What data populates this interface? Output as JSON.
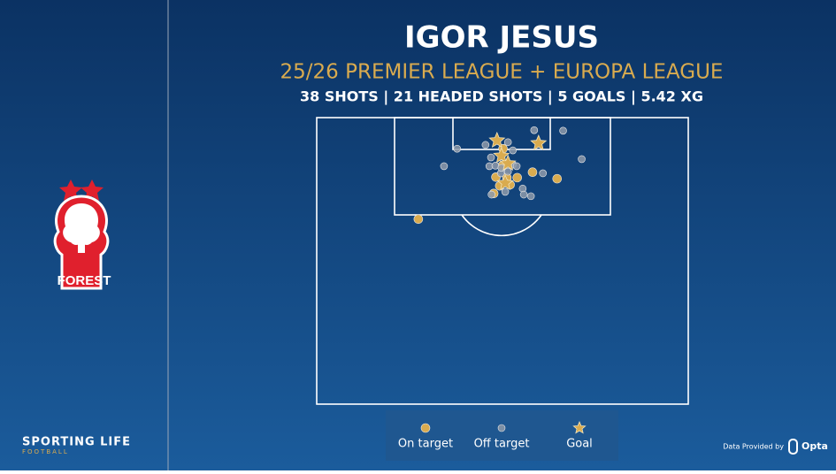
{
  "chart_data": {
    "type": "scatter",
    "title": "IGOR JESUS",
    "subtitle": "25/26 PREMIER LEAGUE + EUROPA LEAGUE",
    "stats": "38 SHOTS | 21 HEADED SHOTS | 5 GOALS | 5.42 XG",
    "xlim": [
      0,
      68
    ],
    "ylim": [
      0,
      52.5
    ],
    "y_inverted": true,
    "series": [
      {
        "name": "On target",
        "color": "#d9ab4f",
        "marker": "circle",
        "x": [
          34.0,
          32.8,
          36.7,
          39.5,
          44.0,
          33.5,
          35.4,
          32.4,
          18.6,
          34.1,
          34.8
        ],
        "values": [
          8.8,
          10.9,
          11.0,
          10.0,
          11.2,
          12.5,
          12.3,
          13.9,
          18.6,
          5.7,
          11.0
        ]
      },
      {
        "name": "Off target",
        "color": "#8e9aaa",
        "marker": "circle",
        "x": [
          39.8,
          45.1,
          35.0,
          25.7,
          48.5,
          23.3,
          31.6,
          32.7,
          41.4,
          37.7,
          39.2,
          32.0,
          34.5,
          37.9,
          35.9,
          31.9,
          33.7,
          35.9,
          30.9,
          36.6,
          33.8,
          35.0
        ],
        "values": [
          2.3,
          2.4,
          4.5,
          5.7,
          7.6,
          8.9,
          8.9,
          8.8,
          10.2,
          13.0,
          14.4,
          14.1,
          13.6,
          14.1,
          8.6,
          7.3,
          10.2,
          6.0,
          5.0,
          8.9,
          9.2,
          9.9
        ]
      },
      {
        "name": "Goal",
        "color": "#d9ab4f",
        "marker": "star",
        "x": [
          33.0,
          40.6,
          33.8,
          35.0,
          34.5
        ],
        "values": [
          4.2,
          4.7,
          7.0,
          8.4,
          12.0
        ]
      }
    ]
  },
  "branding": {
    "crest_text": "FOREST",
    "brand": "SPORTING LIFE",
    "brand_sub": "FOOTBALL",
    "credit": "Data Provided by",
    "provider": "Opta"
  }
}
